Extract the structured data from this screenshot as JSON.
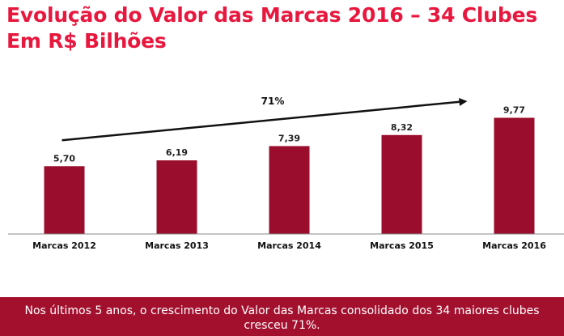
{
  "title": {
    "line1": "Evolução do Valor das Marcas 2016 – 34 Clubes",
    "line2": "Em R$ Bilhões"
  },
  "chart_data": {
    "type": "bar",
    "categories": [
      "Marcas 2012",
      "Marcas 2013",
      "Marcas 2014",
      "Marcas 2015",
      "Marcas 2016"
    ],
    "values": [
      5.7,
      6.19,
      7.39,
      8.32,
      9.77
    ],
    "value_labels": [
      "5,70",
      "6,19",
      "7,39",
      "8,32",
      "9,77"
    ],
    "ylim": [
      0,
      11.3
    ],
    "grid": false,
    "bar_color": "#9b0d2c",
    "trend_annotation": "71%",
    "unit": "R$ Bilhões"
  },
  "footer": {
    "text": "Nos últimos 5 anos, o crescimento do Valor das Marcas consolidado dos 34 maiores clubes cresceu 71%.",
    "background": "#a3102e"
  }
}
